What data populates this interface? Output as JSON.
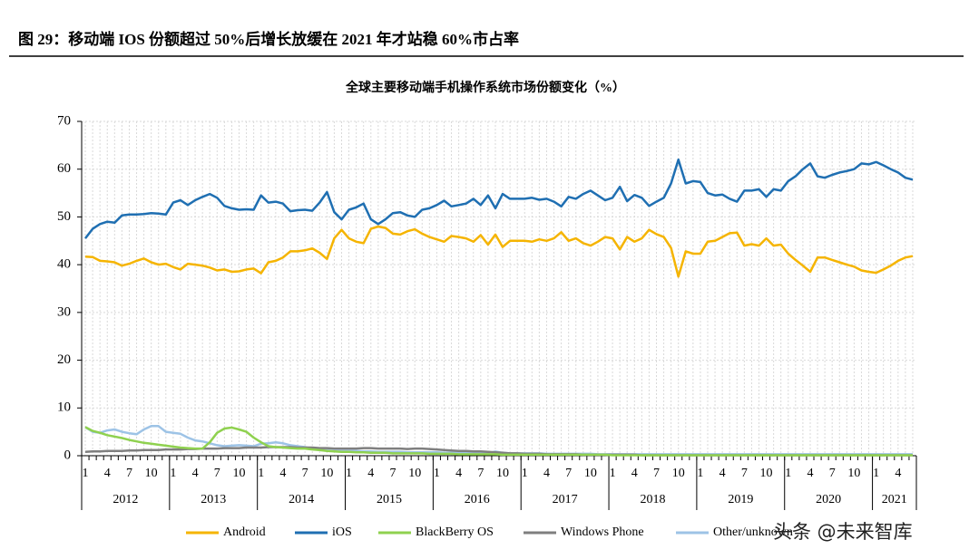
{
  "header": {
    "title": "图 29：移动端 IOS 份额超过 50%后增长放缓在 2021 年才站稳 60%市占率"
  },
  "watermark": "头条 @未来智库",
  "chart_data": {
    "type": "line",
    "title": "全球主要移动端手机操作系统市场份额变化（%）",
    "categories": [
      "1",
      null,
      null,
      "4",
      null,
      null,
      "7",
      null,
      null,
      "10",
      null,
      null,
      "1",
      null,
      null,
      "4",
      null,
      null,
      "7",
      null,
      null,
      "10",
      null,
      null,
      "1",
      null,
      null,
      "4",
      null,
      null,
      "7",
      null,
      null,
      "10",
      null,
      null,
      "1",
      null,
      null,
      "4",
      null,
      null,
      "7",
      null,
      null,
      "10",
      null,
      null,
      "1",
      null,
      null,
      "4",
      null,
      null,
      "7",
      null,
      null,
      "10",
      null,
      null,
      "1",
      null,
      null,
      "4",
      null,
      null,
      "7",
      null,
      null,
      "10",
      null,
      null,
      "1",
      null,
      null,
      "4",
      null,
      null,
      "7",
      null,
      null,
      "10",
      null,
      null,
      "1",
      null,
      null,
      "4",
      null,
      null,
      "7",
      null,
      null,
      "10",
      null,
      null,
      "1",
      null,
      null,
      "4",
      null,
      null,
      "7",
      null,
      null,
      "10",
      null,
      null,
      "1",
      null,
      null,
      "4",
      null,
      null
    ],
    "years": [
      "2012",
      "2013",
      "2014",
      "2015",
      "2016",
      "2017",
      "2018",
      "2019",
      "2020",
      "2021"
    ],
    "ylim": [
      0,
      70
    ],
    "yticks": [
      0,
      10,
      20,
      30,
      40,
      50,
      60,
      70
    ],
    "grid": true,
    "series": [
      {
        "name": "Android",
        "color": "#f5b400",
        "values": [
          41.7,
          41.6,
          40.8,
          40.7,
          40.5,
          39.8,
          40.2,
          40.8,
          41.3,
          40.5,
          40,
          40.2,
          39.5,
          39,
          40.2,
          40,
          39.8,
          39.4,
          38.8,
          39,
          38.5,
          38.6,
          39,
          39.2,
          38.2,
          40.5,
          40.8,
          41.5,
          42.8,
          42.8,
          43,
          43.4,
          42.5,
          41.2,
          45.5,
          47.3,
          45.5,
          44.8,
          44.5,
          47.5,
          48,
          47.7,
          46.5,
          46.3,
          47,
          47.4,
          46.5,
          45.8,
          45.3,
          44.8,
          46,
          45.8,
          45.5,
          44.8,
          46.2,
          44.2,
          46.3,
          43.7,
          45,
          45,
          45,
          44.8,
          45.3,
          45,
          45.5,
          46.8,
          45,
          45.5,
          44.5,
          44,
          44.8,
          45.8,
          45.5,
          43.2,
          45.8,
          44.8,
          45.5,
          47.3,
          46.4,
          45.8,
          43.5,
          37.5,
          42.8,
          42.3,
          42.3,
          44.8,
          45,
          45.8,
          46.6,
          46.7,
          44,
          44.3,
          44,
          45.5,
          44,
          44.2,
          42.3,
          41,
          39.8,
          38.5,
          41.5,
          41.5,
          41,
          40.5,
          40,
          39.6,
          38.8,
          38.5,
          38.3,
          39,
          39.8,
          40.8,
          41.5,
          41.8
        ]
      },
      {
        "name": "iOS",
        "color": "#1f6fb2",
        "values": [
          45.5,
          47.5,
          48.5,
          49,
          48.8,
          50.3,
          50.5,
          50.5,
          50.6,
          50.8,
          50.7,
          50.5,
          53,
          53.5,
          52.5,
          53.5,
          54.2,
          54.8,
          54,
          52.3,
          51.8,
          51.5,
          51.6,
          51.5,
          54.5,
          53,
          53.2,
          52.8,
          51.2,
          51.4,
          51.5,
          51.3,
          53,
          55.2,
          51,
          49.5,
          51.5,
          52,
          52.8,
          49.5,
          48.5,
          49.5,
          50.8,
          51,
          50.3,
          50,
          51.5,
          51.8,
          52.5,
          53.4,
          52.2,
          52.5,
          52.8,
          53.8,
          52.5,
          54.5,
          51.8,
          54.8,
          53.8,
          53.8,
          53.8,
          54,
          53.6,
          53.8,
          53.2,
          52.2,
          54.2,
          53.8,
          54.8,
          55.5,
          54.5,
          53.5,
          54,
          56.3,
          53.3,
          54.6,
          54,
          52.3,
          53.2,
          54,
          57,
          62,
          57,
          57.5,
          57.3,
          55,
          54.5,
          54.7,
          53.8,
          53.2,
          55.5,
          55.5,
          55.8,
          54.2,
          55.8,
          55.5,
          57.5,
          58.5,
          60,
          61.2,
          58.5,
          58.2,
          58.8,
          59.3,
          59.6,
          60,
          61.2,
          61,
          61.5,
          60.8,
          60,
          59.3,
          58.2,
          57.8
        ]
      },
      {
        "name": "BlackBerry OS",
        "color": "#8fd14f",
        "values": [
          6,
          5.2,
          4.8,
          4.3,
          4,
          3.7,
          3.3,
          3,
          2.7,
          2.5,
          2.3,
          2.1,
          1.9,
          1.7,
          1.6,
          1.5,
          1.5,
          2.8,
          4.8,
          5.7,
          5.9,
          5.5,
          5,
          3.8,
          2.8,
          2,
          1.8,
          1.7,
          1.6,
          1.5,
          1.5,
          1.3,
          1.2,
          1,
          0.9,
          0.8,
          0.8,
          0.7,
          0.7,
          0.6,
          0.6,
          0.6,
          0.5,
          0.5,
          0.5,
          0.5,
          0.5,
          0.4,
          0.4,
          0.4,
          0.4,
          0.3,
          0.3,
          0.3,
          0.3,
          0.3,
          0.3,
          0.2,
          0.2,
          0.2,
          0.2,
          0.2,
          0.2,
          0.2,
          0.2,
          0.2,
          0.2,
          0.2,
          0.2,
          0.2,
          0.2,
          0.2,
          0.1,
          0.1,
          0.1,
          0.1,
          0.1,
          0.1,
          0.1,
          0.1,
          0.1,
          0.1,
          0.1,
          0.1,
          0.1,
          0.1,
          0.1,
          0.1,
          0.1,
          0.1,
          0.1,
          0.1,
          0.1,
          0.1,
          0.1,
          0.1,
          0.1,
          0.1,
          0.1,
          0.1,
          0.1,
          0.1,
          0.1,
          0.1,
          0.1,
          0.1,
          0.1,
          0.1,
          0.1,
          0.1,
          0.1,
          0.1,
          0.1,
          0.1
        ]
      },
      {
        "name": "Windows Phone",
        "color": "#7f7f7f",
        "values": [
          0.8,
          0.9,
          0.9,
          1,
          1,
          1,
          1.1,
          1.1,
          1.2,
          1.2,
          1.2,
          1.3,
          1.3,
          1.3,
          1.4,
          1.4,
          1.5,
          1.5,
          1.5,
          1.6,
          1.6,
          1.6,
          1.7,
          1.7,
          1.7,
          1.8,
          1.8,
          1.8,
          1.8,
          1.7,
          1.7,
          1.7,
          1.6,
          1.6,
          1.5,
          1.5,
          1.5,
          1.5,
          1.6,
          1.6,
          1.5,
          1.5,
          1.5,
          1.5,
          1.4,
          1.5,
          1.5,
          1.4,
          1.3,
          1.2,
          1.1,
          1,
          1,
          0.9,
          0.9,
          0.8,
          0.7,
          0.6,
          0.5,
          0.5,
          0.4,
          0.4,
          0.4,
          0.3,
          0.3,
          0.3,
          0.3,
          0.3,
          0.2,
          0.2,
          0.2,
          0.2,
          0.2,
          0.2,
          0.2,
          0.2,
          0.1,
          0.1,
          0.1,
          0.1,
          0.1,
          0.1,
          0.1,
          0.1,
          0.1,
          0.1,
          0.1,
          0.1,
          0.1,
          0.1,
          0.1,
          0.1,
          0.1,
          0.1,
          0.1,
          0.1,
          0.1,
          0.1,
          0.1,
          0.1,
          0.1,
          0.1,
          0.1,
          0.1,
          0.1,
          0.1,
          0.1,
          0.1,
          0.1,
          0.1,
          0.1,
          0.1,
          0.1,
          0.1
        ]
      },
      {
        "name": "Other/unknown",
        "color": "#9dc3e6",
        "values": [
          6,
          5,
          4.8,
          5.3,
          5.5,
          5,
          4.7,
          4.5,
          5.5,
          6.2,
          6.2,
          5,
          4.8,
          4.6,
          3.8,
          3.2,
          3,
          2.6,
          2.2,
          2,
          2.1,
          2.2,
          2.1,
          2,
          2.5,
          2.6,
          2.8,
          2.6,
          2.2,
          2,
          1.8,
          1.4,
          1.2,
          1.1,
          1,
          1,
          1,
          1,
          0.9,
          0.9,
          0.8,
          0.8,
          0.8,
          0.8,
          0.7,
          0.7,
          0.7,
          0.7,
          0.7,
          0.6,
          0.6,
          0.6,
          0.6,
          0.5,
          0.6,
          0.5,
          0.9,
          0.6,
          0.5,
          0.5,
          0.5,
          0.5,
          0.5,
          0.4,
          0.4,
          0.4,
          0.4,
          0.4,
          0.4,
          0.4,
          0.3,
          0.3,
          0.3,
          0.3,
          0.3,
          0.3,
          0.3,
          0.3,
          0.3,
          0.3,
          0.3,
          0.3,
          0.3,
          0.3,
          0.3,
          0.3,
          0.3,
          0.3,
          0.3,
          0.3,
          0.3,
          0.3,
          0.3,
          0.3,
          0.3,
          0.3,
          0.3,
          0.3,
          0.3,
          0.3,
          0.3,
          0.3,
          0.3,
          0.3,
          0.3,
          0.3,
          0.3,
          0.3,
          0.3,
          0.3,
          0.3,
          0.3,
          0.3,
          0.3
        ]
      }
    ]
  }
}
